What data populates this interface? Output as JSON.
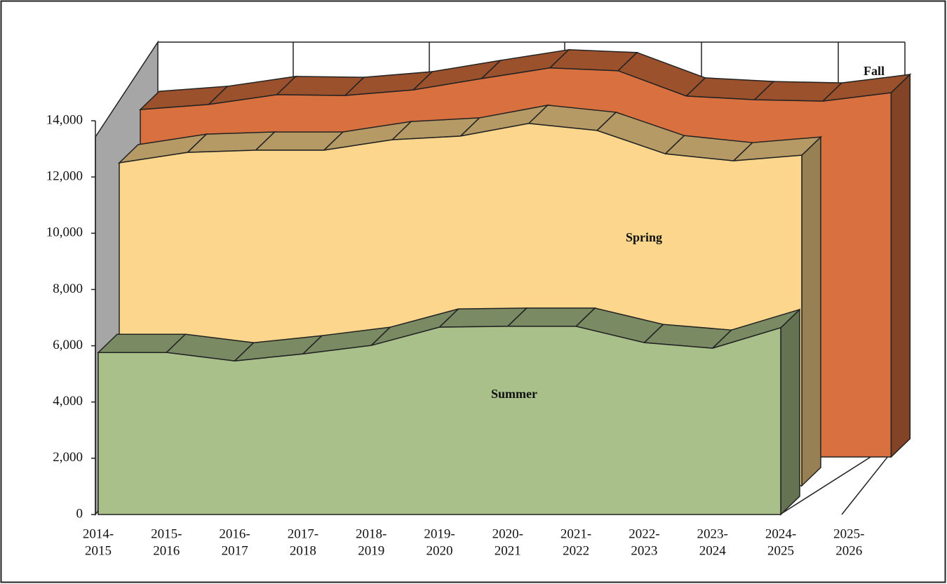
{
  "chart_data": {
    "type": "area3d",
    "categories": [
      [
        "2014-",
        "2015"
      ],
      [
        "2015-",
        "2016"
      ],
      [
        "2016-",
        "2017"
      ],
      [
        "2017-",
        "2018"
      ],
      [
        "2018-",
        "2019"
      ],
      [
        "2019-",
        "2020"
      ],
      [
        "2020-",
        "2021"
      ],
      [
        "2021-",
        "2022"
      ],
      [
        "2022-",
        "2023"
      ],
      [
        "2023-",
        "2024"
      ],
      [
        "2024-",
        "2025"
      ],
      [
        "2025-",
        "2026"
      ]
    ],
    "series": [
      {
        "name": "Summer",
        "color": "#a9c08a",
        "values": [
          5760,
          5760,
          5460,
          5710,
          6010,
          6660,
          6690,
          6690,
          6110,
          5910,
          6640,
          null
        ]
      },
      {
        "name": "Spring",
        "color": "#fbd68c",
        "values": [
          11480,
          11850,
          11930,
          11930,
          12300,
          12430,
          12880,
          12630,
          11800,
          11550,
          11750,
          null
        ]
      },
      {
        "name": "Fall",
        "color": "#d9703f",
        "values": [
          12350,
          12530,
          12880,
          12850,
          13050,
          13450,
          13830,
          13730,
          12830,
          12700,
          12650,
          12950
        ]
      }
    ],
    "ylim": [
      0,
      14000
    ],
    "yticks": [
      0,
      {
        "value": 2000,
        "label": "2,000"
      },
      {
        "value": 4000,
        "label": "4,000"
      },
      {
        "value": 6000,
        "label": "6,000"
      },
      {
        "value": 8000,
        "label": "8,000"
      },
      {
        "value": 10000,
        "label": "10,000"
      },
      {
        "value": 12000,
        "label": "12,000"
      },
      {
        "value": 14000,
        "label": "14,000"
      }
    ]
  }
}
